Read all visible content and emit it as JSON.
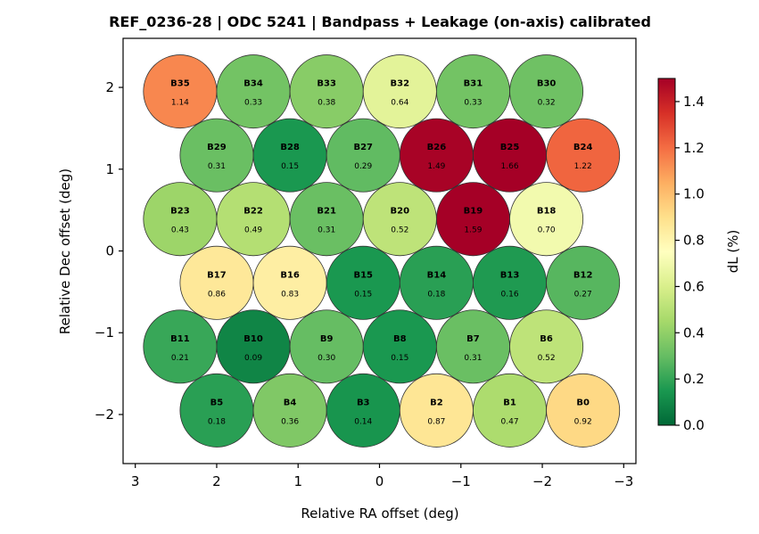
{
  "chart_data": {
    "type": "scatter",
    "title": "REF_0236-28  |  ODC 5241  |  Bandpass + Leakage (on-axis) calibrated",
    "xlabel": "Relative RA offset (deg)",
    "ylabel": "Relative Dec offset (deg)",
    "xlim": [
      3.15,
      -3.15
    ],
    "ylim": [
      -2.6,
      2.6
    ],
    "x_ticks": [
      3,
      2,
      1,
      0,
      -1,
      -2,
      -3
    ],
    "x_tick_labels": [
      "3",
      "2",
      "1",
      "0",
      "−1",
      "−2",
      "−3"
    ],
    "y_ticks": [
      -2,
      -1,
      0,
      1,
      2
    ],
    "y_tick_labels": [
      "−2",
      "−1",
      "0",
      "1",
      "2"
    ],
    "beam_radius_deg": 0.45,
    "grid": false,
    "colorbar": {
      "label": "dL  (%)",
      "colormap": "RdYlGn_r",
      "range": [
        0.0,
        1.5
      ],
      "ticks": [
        0.0,
        0.2,
        0.4,
        0.6,
        0.8,
        1.0,
        1.2,
        1.4
      ],
      "tick_labels": [
        "0.0",
        "0.2",
        "0.4",
        "0.6",
        "0.8",
        "1.0",
        "1.2",
        "1.4"
      ]
    },
    "beams": [
      {
        "name": "B35",
        "x": 2.45,
        "y": 1.95,
        "value": 1.14,
        "label": "1.14"
      },
      {
        "name": "B34",
        "x": 1.55,
        "y": 1.95,
        "value": 0.33,
        "label": "0.33"
      },
      {
        "name": "B33",
        "x": 0.65,
        "y": 1.95,
        "value": 0.38,
        "label": "0.38"
      },
      {
        "name": "B32",
        "x": -0.25,
        "y": 1.95,
        "value": 0.64,
        "label": "0.64"
      },
      {
        "name": "B31",
        "x": -1.15,
        "y": 1.95,
        "value": 0.33,
        "label": "0.33"
      },
      {
        "name": "B30",
        "x": -2.05,
        "y": 1.95,
        "value": 0.32,
        "label": "0.32"
      },
      {
        "name": "B29",
        "x": 2.0,
        "y": 1.17,
        "value": 0.31,
        "label": "0.31"
      },
      {
        "name": "B28",
        "x": 1.1,
        "y": 1.17,
        "value": 0.15,
        "label": "0.15"
      },
      {
        "name": "B27",
        "x": 0.2,
        "y": 1.17,
        "value": 0.29,
        "label": "0.29"
      },
      {
        "name": "B26",
        "x": -0.7,
        "y": 1.17,
        "value": 1.49,
        "label": "1.49"
      },
      {
        "name": "B25",
        "x": -1.6,
        "y": 1.17,
        "value": 1.66,
        "label": "1.66"
      },
      {
        "name": "B24",
        "x": -2.5,
        "y": 1.17,
        "value": 1.22,
        "label": "1.22"
      },
      {
        "name": "B23",
        "x": 2.45,
        "y": 0.39,
        "value": 0.43,
        "label": "0.43"
      },
      {
        "name": "B22",
        "x": 1.55,
        "y": 0.39,
        "value": 0.49,
        "label": "0.49"
      },
      {
        "name": "B21",
        "x": 0.65,
        "y": 0.39,
        "value": 0.31,
        "label": "0.31"
      },
      {
        "name": "B20",
        "x": -0.25,
        "y": 0.39,
        "value": 0.52,
        "label": "0.52"
      },
      {
        "name": "B19",
        "x": -1.15,
        "y": 0.39,
        "value": 1.59,
        "label": "1.59"
      },
      {
        "name": "B18",
        "x": -2.05,
        "y": 0.39,
        "value": 0.7,
        "label": "0.70"
      },
      {
        "name": "B17",
        "x": 2.0,
        "y": -0.39,
        "value": 0.86,
        "label": "0.86"
      },
      {
        "name": "B16",
        "x": 1.1,
        "y": -0.39,
        "value": 0.83,
        "label": "0.83"
      },
      {
        "name": "B15",
        "x": 0.2,
        "y": -0.39,
        "value": 0.15,
        "label": "0.15"
      },
      {
        "name": "B14",
        "x": -0.7,
        "y": -0.39,
        "value": 0.18,
        "label": "0.18"
      },
      {
        "name": "B13",
        "x": -1.6,
        "y": -0.39,
        "value": 0.16,
        "label": "0.16"
      },
      {
        "name": "B12",
        "x": -2.5,
        "y": -0.39,
        "value": 0.27,
        "label": "0.27"
      },
      {
        "name": "B11",
        "x": 2.45,
        "y": -1.17,
        "value": 0.21,
        "label": "0.21"
      },
      {
        "name": "B10",
        "x": 1.55,
        "y": -1.17,
        "value": 0.09,
        "label": "0.09"
      },
      {
        "name": "B9",
        "x": 0.65,
        "y": -1.17,
        "value": 0.3,
        "label": "0.30"
      },
      {
        "name": "B8",
        "x": -0.25,
        "y": -1.17,
        "value": 0.15,
        "label": "0.15"
      },
      {
        "name": "B7",
        "x": -1.15,
        "y": -1.17,
        "value": 0.31,
        "label": "0.31"
      },
      {
        "name": "B6",
        "x": -2.05,
        "y": -1.17,
        "value": 0.52,
        "label": "0.52"
      },
      {
        "name": "B5",
        "x": 2.0,
        "y": -1.95,
        "value": 0.18,
        "label": "0.18"
      },
      {
        "name": "B4",
        "x": 1.1,
        "y": -1.95,
        "value": 0.36,
        "label": "0.36"
      },
      {
        "name": "B3",
        "x": 0.2,
        "y": -1.95,
        "value": 0.14,
        "label": "0.14"
      },
      {
        "name": "B2",
        "x": -0.7,
        "y": -1.95,
        "value": 0.87,
        "label": "0.87"
      },
      {
        "name": "B1",
        "x": -1.6,
        "y": -1.95,
        "value": 0.47,
        "label": "0.47"
      },
      {
        "name": "B0",
        "x": -2.5,
        "y": -1.95,
        "value": 0.92,
        "label": "0.92"
      }
    ]
  }
}
